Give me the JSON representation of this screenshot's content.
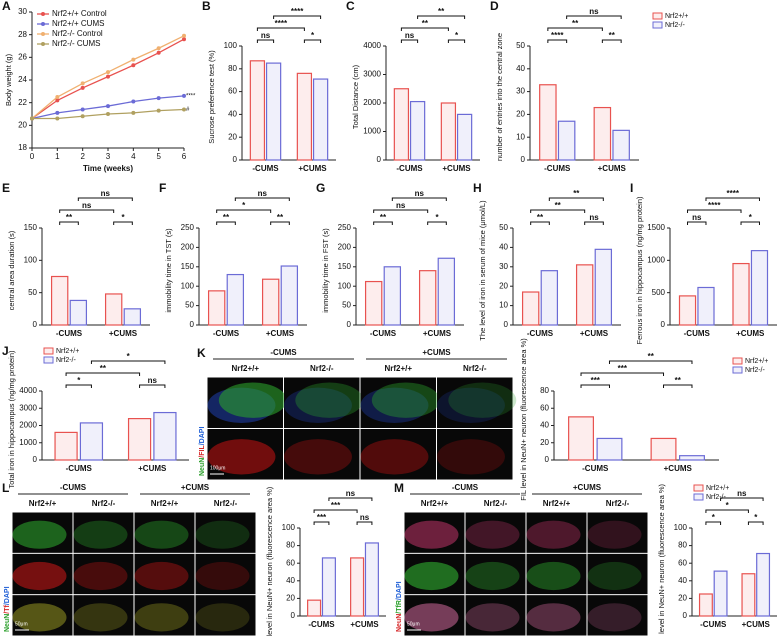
{
  "chart_data": [
    {
      "type": "line",
      "panel": "A",
      "xlabel": "Time (weeks)",
      "ylabel": "Body weight (g)",
      "x": [
        0,
        1,
        2,
        3,
        4,
        5,
        6
      ],
      "xlim": [
        0,
        6
      ],
      "xticks": [
        0,
        1,
        2,
        3,
        4,
        5,
        6
      ],
      "ylim": [
        18,
        30
      ],
      "yticks": [
        18,
        20,
        22,
        24,
        26,
        28,
        30
      ],
      "legend": "top-left",
      "series": [
        {
          "name": "Nrf2+/+ Control",
          "color": "#e8524f",
          "values": [
            20.6,
            22.2,
            23.3,
            24.3,
            25.3,
            26.4,
            27.6
          ]
        },
        {
          "name": "Nrf2+/+ CUMS",
          "color": "#6b6bd6",
          "values": [
            20.6,
            21.1,
            21.4,
            21.7,
            22.1,
            22.4,
            22.6
          ]
        },
        {
          "name": "Nrf2-/- Control",
          "color": "#f0b070",
          "values": [
            20.6,
            22.5,
            23.7,
            24.7,
            25.8,
            26.8,
            27.9
          ]
        },
        {
          "name": "Nrf2-/- CUMS",
          "color": "#b0a060",
          "values": [
            20.6,
            20.6,
            20.8,
            21.0,
            21.1,
            21.3,
            21.4
          ]
        }
      ],
      "annotations": [
        "****",
        "#"
      ]
    },
    {
      "type": "bar",
      "panel": "B",
      "ylabel": "Sucrose preference test (%)",
      "categories": [
        "-CUMS",
        "+CUMS"
      ],
      "series": [
        {
          "color": "#e8524f",
          "values": [
            87,
            76
          ]
        },
        {
          "color": "#6b6bd6",
          "values": [
            85,
            71
          ]
        }
      ],
      "ylim": [
        0,
        100
      ],
      "yticks": [
        0,
        20,
        40,
        60,
        80,
        100
      ],
      "annotations": [
        "ns",
        "*",
        "****",
        "****"
      ]
    },
    {
      "type": "bar",
      "panel": "C",
      "ylabel": "Total Distance (cm)",
      "categories": [
        "-CUMS",
        "+CUMS"
      ],
      "series": [
        {
          "color": "#e8524f",
          "values": [
            2500,
            2000
          ]
        },
        {
          "color": "#6b6bd6",
          "values": [
            2050,
            1600
          ]
        }
      ],
      "ylim": [
        0,
        4000
      ],
      "yticks": [
        0,
        1000,
        2000,
        3000,
        4000
      ],
      "annotations": [
        "ns",
        "*",
        "**",
        "**"
      ]
    },
    {
      "type": "bar",
      "panel": "D",
      "ylabel": "number of entries into the central zone",
      "categories": [
        "-CUMS",
        "+CUMS"
      ],
      "series": [
        {
          "name": "Nrf2+/+",
          "color": "#e8524f",
          "values": [
            33,
            23
          ]
        },
        {
          "name": "Nrf2-/-",
          "color": "#6b6bd6",
          "values": [
            17,
            13
          ]
        }
      ],
      "ylim": [
        0,
        50
      ],
      "yticks": [
        0,
        10,
        20,
        30,
        40,
        50
      ],
      "legend": "right",
      "annotations": [
        "****",
        "**",
        "**",
        "ns"
      ]
    },
    {
      "type": "bar",
      "panel": "E",
      "ylabel": "central area duration (s)",
      "categories": [
        "-CUMS",
        "+CUMS"
      ],
      "series": [
        {
          "color": "#e8524f",
          "values": [
            75,
            48
          ]
        },
        {
          "color": "#6b6bd6",
          "values": [
            38,
            25
          ]
        }
      ],
      "ylim": [
        0,
        150
      ],
      "yticks": [
        0,
        50,
        100,
        150
      ],
      "annotations": [
        "**",
        "*",
        "ns",
        "ns"
      ]
    },
    {
      "type": "bar",
      "panel": "F",
      "ylabel": "immobility time in TST (s)",
      "categories": [
        "-CUMS",
        "+CUMS"
      ],
      "series": [
        {
          "color": "#e8524f",
          "values": [
            88,
            118
          ]
        },
        {
          "color": "#6b6bd6",
          "values": [
            130,
            152
          ]
        }
      ],
      "ylim": [
        0,
        250
      ],
      "yticks": [
        0,
        50,
        100,
        150,
        200,
        250
      ],
      "annotations": [
        "**",
        "**",
        "*",
        "ns"
      ]
    },
    {
      "type": "bar",
      "panel": "G",
      "ylabel": "immobility time in FST (s)",
      "categories": [
        "-CUMS",
        "+CUMS"
      ],
      "series": [
        {
          "color": "#e8524f",
          "values": [
            112,
            140
          ]
        },
        {
          "color": "#6b6bd6",
          "values": [
            150,
            172
          ]
        }
      ],
      "ylim": [
        0,
        250
      ],
      "yticks": [
        0,
        50,
        100,
        150,
        200,
        250
      ],
      "annotations": [
        "**",
        "*",
        "ns",
        "ns"
      ]
    },
    {
      "type": "bar",
      "panel": "H",
      "ylabel": "The level of iron in serum of mice (μmol/L)",
      "categories": [
        "-CUMS",
        "+CUMS"
      ],
      "series": [
        {
          "color": "#e8524f",
          "values": [
            17,
            31
          ]
        },
        {
          "color": "#6b6bd6",
          "values": [
            28,
            39
          ]
        }
      ],
      "ylim": [
        0,
        50
      ],
      "yticks": [
        0,
        10,
        20,
        30,
        40,
        50
      ],
      "annotations": [
        "**",
        "ns",
        "**",
        "**"
      ]
    },
    {
      "type": "bar",
      "panel": "I",
      "ylabel": "Ferrous iron in hippocampus (ng/mg protein)",
      "categories": [
        "-CUMS",
        "+CUMS"
      ],
      "series": [
        {
          "color": "#e8524f",
          "values": [
            450,
            950
          ]
        },
        {
          "color": "#6b6bd6",
          "values": [
            580,
            1150
          ]
        }
      ],
      "ylim": [
        0,
        1500
      ],
      "yticks": [
        0,
        500,
        1000,
        1500
      ],
      "annotations": [
        "ns",
        "*",
        "****",
        "****"
      ]
    },
    {
      "type": "bar",
      "panel": "J",
      "ylabel": "Total iron in hippocampus (ng/mg protein)",
      "categories": [
        "-CUMS",
        "+CUMS"
      ],
      "series": [
        {
          "name": "Nrf2+/+",
          "color": "#e8524f",
          "values": [
            1600,
            2400
          ]
        },
        {
          "name": "Nrf2-/-",
          "color": "#6b6bd6",
          "values": [
            2150,
            2750
          ]
        }
      ],
      "ylim": [
        0,
        4000
      ],
      "yticks": [
        0,
        1000,
        2000,
        3000,
        4000
      ],
      "legend": "top-left",
      "annotations": [
        "*",
        "ns",
        "**",
        "*"
      ]
    },
    {
      "type": "bar",
      "ylabel": "FIL level in NeuN+ neuron (fluorescence area %)",
      "categories": [
        "-CUMS",
        "+CUMS"
      ],
      "series": [
        {
          "name": "Nrf2+/+",
          "color": "#e8524f",
          "values": [
            50,
            25
          ]
        },
        {
          "name": "Nrf2-/-",
          "color": "#6b6bd6",
          "values": [
            25,
            5
          ]
        }
      ],
      "ylim": [
        0,
        80
      ],
      "yticks": [
        0,
        20,
        40,
        60,
        80
      ],
      "legend": "right",
      "annotations": [
        "***",
        "**",
        "***",
        "**"
      ]
    },
    {
      "type": "bar",
      "ylabel": "Tf level in NeuN+ neuron (fluorescence area %)",
      "categories": [
        "-CUMS",
        "+CUMS"
      ],
      "series": [
        {
          "color": "#e8524f",
          "values": [
            18,
            66
          ]
        },
        {
          "color": "#6b6bd6",
          "values": [
            66,
            83
          ]
        }
      ],
      "ylim": [
        0,
        100
      ],
      "yticks": [
        0,
        20,
        40,
        60,
        80,
        100
      ],
      "annotations": [
        "***",
        "ns",
        "***",
        "ns"
      ]
    },
    {
      "type": "bar",
      "ylabel": "TfR level in NeuN+ neuron (fluorescence area %)",
      "categories": [
        "-CUMS",
        "+CUMS"
      ],
      "series": [
        {
          "name": "Nrf2+/+",
          "color": "#e8524f",
          "values": [
            25,
            48
          ]
        },
        {
          "name": "Nrf2-/-",
          "color": "#6b6bd6",
          "values": [
            51,
            71
          ]
        }
      ],
      "ylim": [
        0,
        100
      ],
      "yticks": [
        0,
        20,
        40,
        60,
        80,
        100
      ],
      "legend": "top-left",
      "annotations": [
        "*",
        "*",
        "*",
        "ns"
      ]
    }
  ],
  "image_panels": [
    {
      "panel": "K",
      "groups": [
        "-CUMS",
        "+CUMS"
      ],
      "columns": [
        "Nrf2+/+",
        "Nrf2-/-",
        "Nrf2+/+",
        "Nrf2-/-"
      ],
      "stain": [
        {
          "text": "NeuN",
          "color": "#2ca02c"
        },
        {
          "text": "/FIL",
          "color": "#d62728"
        },
        {
          "text": "/DAPI",
          "color": "#1f5fd6"
        }
      ],
      "scale": "100μm"
    },
    {
      "panel": "L",
      "groups": [
        "-CUMS",
        "+CUMS"
      ],
      "columns": [
        "Nrf2+/+",
        "Nrf2-/-",
        "Nrf2+/+",
        "Nrf2-/-"
      ],
      "stain": [
        {
          "text": "NeuN",
          "color": "#2ca02c"
        },
        {
          "text": "/Tf",
          "color": "#d62728"
        },
        {
          "text": "/DAPI",
          "color": "#1f5fd6"
        }
      ],
      "scale": "50μm"
    },
    {
      "panel": "M",
      "groups": [
        "-CUMS",
        "+CUMS"
      ],
      "columns": [
        "Nrf2+/+",
        "Nrf2-/-",
        "Nrf2+/+",
        "Nrf2-/-"
      ],
      "stain": [
        {
          "text": "NeuN",
          "color": "#d62728"
        },
        {
          "text": "/TfR",
          "color": "#2ca02c"
        },
        {
          "text": "/DAPI",
          "color": "#1f5fd6"
        }
      ],
      "scale": "50μm"
    }
  ]
}
